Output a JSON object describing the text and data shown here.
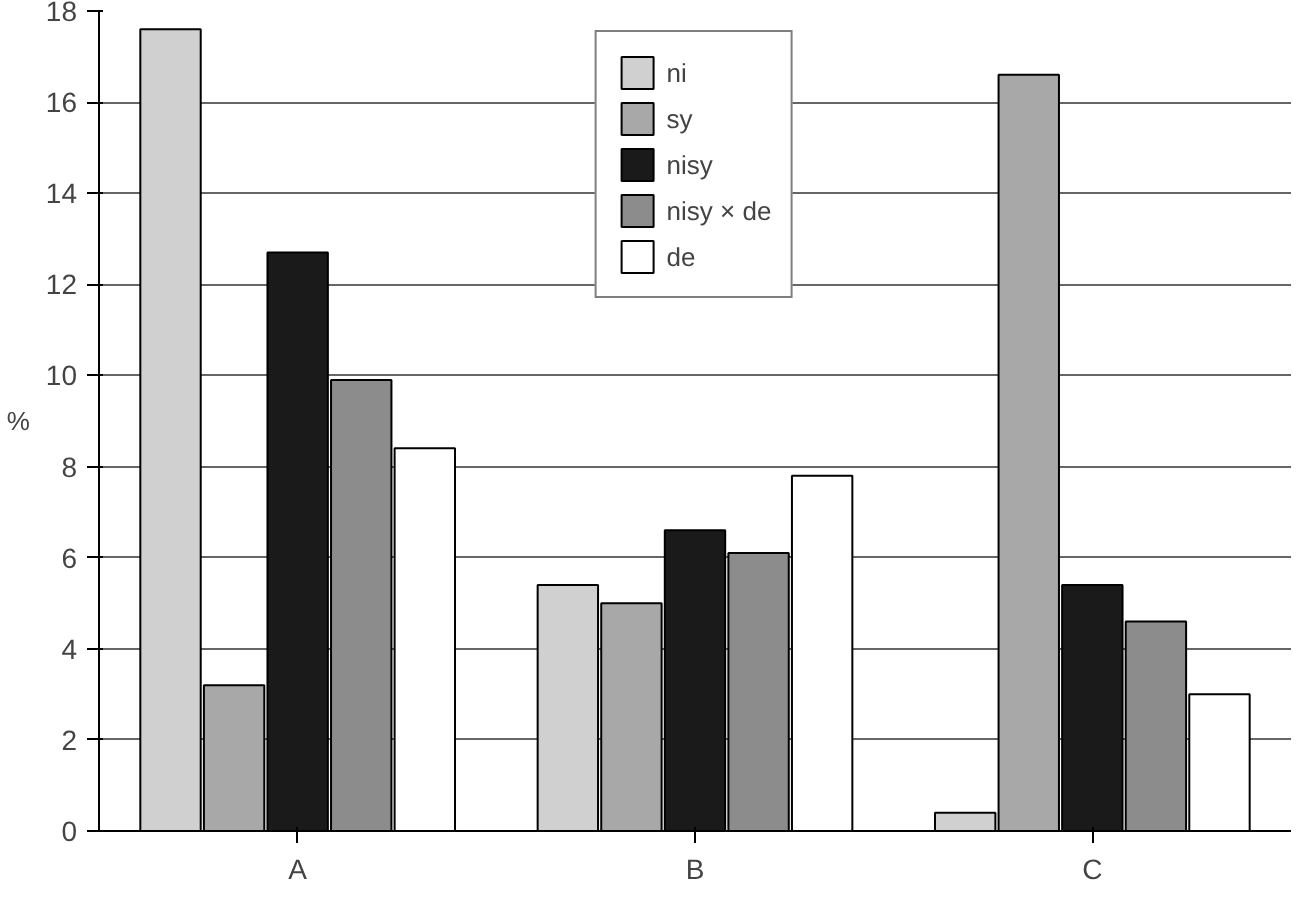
{
  "chart_data": {
    "type": "bar",
    "ylabel": "%",
    "categories": [
      "A",
      "B",
      "C"
    ],
    "series": [
      {
        "name": "ni",
        "color": "#d0d0d0",
        "values": [
          17.6,
          5.4,
          0.4
        ]
      },
      {
        "name": "sy",
        "color": "#a8a8a8",
        "values": [
          3.2,
          5.0,
          16.6
        ]
      },
      {
        "name": "nisy",
        "color": "#1a1a1a",
        "values": [
          12.7,
          6.6,
          5.4
        ]
      },
      {
        "name": "nisy × de",
        "color": "#8c8c8c",
        "values": [
          9.9,
          6.1,
          4.6
        ]
      },
      {
        "name": "de",
        "color": "#ffffff",
        "values": [
          8.4,
          7.8,
          3.0
        ]
      }
    ],
    "ylim": [
      0,
      18
    ],
    "yticks": [
      0,
      2,
      4,
      6,
      8,
      10,
      12,
      14,
      16,
      18
    ],
    "grid": "y",
    "legend": "top"
  }
}
